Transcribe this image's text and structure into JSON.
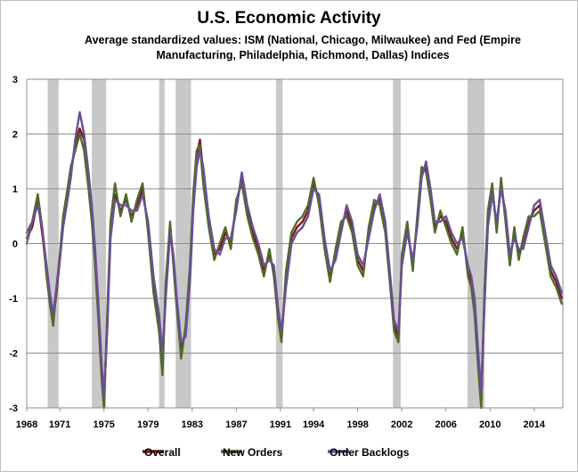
{
  "chart_data": {
    "type": "line",
    "title": "U.S. Economic Activity",
    "subtitle_line1": "Average standardized values: ISM (National, Chicago, Milwaukee) and Fed (Empire",
    "subtitle_line2": "Manufacturing, Philadelphia, Richmond, Dallas) Indices",
    "xlabel": "",
    "ylabel": "",
    "xlim": [
      1968.0,
      2016.6
    ],
    "ylim": [
      -3,
      3
    ],
    "x_ticks": [
      "1968",
      "1971",
      "1975",
      "1979",
      "1983",
      "1987",
      "1991",
      "1994",
      "1998",
      "2002",
      "2006",
      "2010",
      "2014"
    ],
    "y_ticks": [
      "3",
      "2",
      "1",
      "0",
      "-1",
      "-2",
      "-3"
    ],
    "grid": "horizontal",
    "legend_position": "bottom",
    "recessions": [
      [
        1969.9,
        1970.9
      ],
      [
        1973.9,
        1975.2
      ],
      [
        1980.0,
        1980.5
      ],
      [
        1981.5,
        1982.9
      ],
      [
        1990.6,
        1991.2
      ],
      [
        2001.2,
        2001.9
      ],
      [
        2007.95,
        2009.5
      ]
    ],
    "x": [
      1968.0,
      1968.5,
      1969.0,
      1969.4,
      1969.8,
      1970.1,
      1970.4,
      1970.7,
      1971.0,
      1971.3,
      1971.7,
      1972.0,
      1972.4,
      1972.8,
      1973.2,
      1973.6,
      1973.9,
      1974.2,
      1974.5,
      1974.8,
      1975.0,
      1975.3,
      1975.6,
      1976.0,
      1976.5,
      1977.0,
      1977.5,
      1978.0,
      1978.5,
      1979.0,
      1979.5,
      1980.0,
      1980.3,
      1980.6,
      1981.0,
      1981.3,
      1981.6,
      1982.0,
      1982.4,
      1982.8,
      1983.1,
      1983.4,
      1983.7,
      1984.0,
      1984.5,
      1985.0,
      1985.5,
      1986.0,
      1986.5,
      1987.0,
      1987.5,
      1988.0,
      1988.5,
      1989.0,
      1989.5,
      1990.0,
      1990.4,
      1990.8,
      1991.1,
      1991.5,
      1992.0,
      1992.5,
      1993.0,
      1993.5,
      1994.0,
      1994.5,
      1995.0,
      1995.5,
      1996.0,
      1996.5,
      1997.0,
      1997.5,
      1998.0,
      1998.5,
      1999.0,
      1999.5,
      2000.0,
      2000.5,
      2001.0,
      2001.3,
      2001.7,
      2002.0,
      2002.5,
      2003.0,
      2003.4,
      2003.8,
      2004.2,
      2004.6,
      2005.0,
      2005.5,
      2006.0,
      2006.5,
      2007.0,
      2007.5,
      2008.0,
      2008.3,
      2008.6,
      2008.9,
      2009.2,
      2009.5,
      2009.8,
      2010.2,
      2010.6,
      2011.0,
      2011.4,
      2011.8,
      2012.2,
      2012.6,
      2013.0,
      2013.5,
      2014.0,
      2014.5,
      2015.0,
      2015.5,
      2016.0,
      2016.5
    ],
    "series": [
      {
        "name": "Overall",
        "color": "#7b1a1a",
        "values": [
          0.1,
          0.3,
          0.8,
          0.2,
          -0.5,
          -1.0,
          -1.4,
          -0.9,
          -0.3,
          0.4,
          0.9,
          1.3,
          1.8,
          2.1,
          1.9,
          1.2,
          0.6,
          -0.2,
          -1.2,
          -2.3,
          -2.9,
          -1.5,
          0.2,
          0.9,
          0.6,
          0.8,
          0.5,
          0.7,
          1.0,
          0.3,
          -0.7,
          -1.4,
          -2.2,
          -0.9,
          0.3,
          -0.3,
          -1.1,
          -1.9,
          -1.6,
          -0.6,
          0.7,
          1.6,
          1.9,
          1.3,
          0.4,
          -0.2,
          -0.1,
          0.2,
          0.0,
          0.7,
          1.2,
          0.6,
          0.2,
          -0.1,
          -0.5,
          -0.2,
          -0.5,
          -1.3,
          -1.7,
          -0.7,
          0.1,
          0.3,
          0.4,
          0.6,
          1.1,
          0.8,
          0.0,
          -0.6,
          -0.2,
          0.3,
          0.6,
          0.3,
          -0.3,
          -0.5,
          0.2,
          0.7,
          0.8,
          0.3,
          -0.8,
          -1.5,
          -1.7,
          -0.3,
          0.3,
          -0.4,
          0.4,
          1.3,
          1.4,
          0.9,
          0.3,
          0.5,
          0.4,
          0.1,
          -0.1,
          0.2,
          -0.5,
          -0.7,
          -1.1,
          -2.0,
          -2.9,
          -1.0,
          0.4,
          1.0,
          0.3,
          1.1,
          0.5,
          -0.3,
          0.2,
          -0.2,
          0.0,
          0.4,
          0.6,
          0.7,
          0.1,
          -0.5,
          -0.7,
          -1.0
        ]
      },
      {
        "name": "New Orders",
        "color": "#4f6b2a",
        "values": [
          0.2,
          0.4,
          0.9,
          0.3,
          -0.6,
          -1.1,
          -1.5,
          -0.8,
          -0.2,
          0.5,
          1.0,
          1.4,
          1.7,
          2.0,
          1.7,
          1.0,
          0.4,
          -0.4,
          -1.4,
          -2.5,
          -3.0,
          -1.3,
          0.4,
          1.1,
          0.5,
          0.9,
          0.4,
          0.8,
          1.1,
          0.2,
          -0.9,
          -1.6,
          -2.4,
          -0.7,
          0.4,
          -0.4,
          -1.2,
          -2.1,
          -1.5,
          -0.4,
          0.9,
          1.7,
          1.8,
          1.1,
          0.3,
          -0.3,
          0.0,
          0.3,
          -0.1,
          0.8,
          1.1,
          0.5,
          0.1,
          -0.2,
          -0.6,
          -0.1,
          -0.6,
          -1.4,
          -1.8,
          -0.5,
          0.2,
          0.4,
          0.5,
          0.7,
          1.2,
          0.7,
          -0.1,
          -0.7,
          -0.1,
          0.4,
          0.5,
          0.2,
          -0.4,
          -0.6,
          0.3,
          0.8,
          0.7,
          0.2,
          -0.9,
          -1.6,
          -1.8,
          -0.2,
          0.4,
          -0.5,
          0.5,
          1.4,
          1.3,
          0.8,
          0.2,
          0.6,
          0.3,
          0.0,
          -0.2,
          0.3,
          -0.6,
          -0.8,
          -1.3,
          -2.2,
          -3.0,
          -0.8,
          0.6,
          1.1,
          0.2,
          1.2,
          0.4,
          -0.4,
          0.3,
          -0.3,
          0.1,
          0.5,
          0.5,
          0.6,
          0.0,
          -0.6,
          -0.8,
          -1.1
        ]
      },
      {
        "name": "Order Backlogs",
        "color": "#6a4e96",
        "values": [
          0.0,
          0.4,
          0.7,
          0.3,
          -0.4,
          -0.9,
          -1.3,
          -0.8,
          -0.3,
          0.3,
          0.8,
          1.2,
          1.9,
          2.4,
          2.0,
          1.3,
          0.7,
          -0.1,
          -1.1,
          -2.2,
          -2.8,
          -1.6,
          0.1,
          0.8,
          0.7,
          0.7,
          0.6,
          0.6,
          0.9,
          0.4,
          -0.6,
          -1.3,
          -2.0,
          -1.0,
          0.2,
          -0.2,
          -1.0,
          -1.8,
          -1.7,
          -0.7,
          0.6,
          1.4,
          1.7,
          1.4,
          0.5,
          -0.1,
          -0.2,
          0.1,
          0.1,
          0.6,
          1.3,
          0.7,
          0.3,
          0.0,
          -0.4,
          -0.3,
          -0.4,
          -1.2,
          -1.6,
          -0.8,
          0.0,
          0.2,
          0.3,
          0.5,
          1.0,
          0.9,
          0.1,
          -0.5,
          -0.3,
          0.2,
          0.7,
          0.4,
          -0.2,
          -0.4,
          0.1,
          0.6,
          0.9,
          0.4,
          -0.7,
          -1.4,
          -1.6,
          -0.4,
          0.2,
          -0.3,
          0.3,
          1.2,
          1.5,
          1.0,
          0.4,
          0.4,
          0.5,
          0.2,
          0.0,
          0.1,
          -0.4,
          -0.6,
          -1.0,
          -1.9,
          -2.7,
          -1.1,
          0.3,
          0.9,
          0.4,
          1.0,
          0.6,
          -0.2,
          0.1,
          -0.1,
          -0.1,
          0.3,
          0.7,
          0.8,
          0.2,
          -0.4,
          -0.6,
          -0.9
        ]
      }
    ]
  }
}
